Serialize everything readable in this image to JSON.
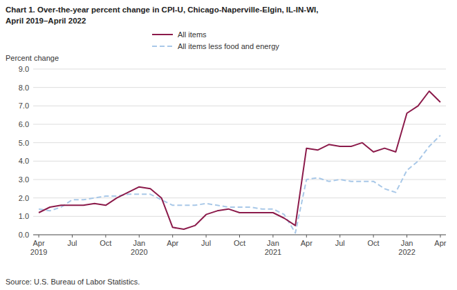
{
  "chart_data": {
    "type": "line",
    "title": "Chart 1. Over-the-year percent change in CPI-U, Chicago-Naperville-Elgin,  IL-IN-WI,",
    "subtitle": "April 2019–April  2022",
    "ylabel": "Percent change",
    "annotations": [
      "Source: U.S. Bureau of Labor Statistics."
    ],
    "categories": [
      "Apr\n2019",
      null,
      null,
      "Jul",
      null,
      null,
      "Oct",
      null,
      null,
      "Jan\n2020",
      null,
      null,
      "Apr",
      null,
      null,
      "Jul",
      null,
      null,
      "Oct",
      null,
      null,
      "Jan\n2021",
      null,
      null,
      "Apr",
      null,
      null,
      "Jul",
      null,
      null,
      "Oct",
      null,
      null,
      "Jan\n2022",
      null,
      null,
      "Apr"
    ],
    "series": [
      {
        "name": "All items",
        "color": "#8B1A4A",
        "line_style": "solid",
        "values": [
          1.2,
          1.5,
          1.6,
          1.6,
          1.6,
          1.7,
          1.6,
          2.0,
          2.3,
          2.6,
          2.5,
          2.0,
          0.4,
          0.3,
          0.5,
          1.1,
          1.3,
          1.4,
          1.2,
          1.2,
          1.2,
          1.2,
          0.9,
          0.5,
          4.7,
          4.6,
          4.9,
          4.8,
          4.8,
          5.0,
          4.5,
          4.7,
          4.5,
          6.6,
          7.0,
          7.8,
          7.2
        ]
      },
      {
        "name": "All items less food and energy",
        "color": "#A8C8E8",
        "line_style": "dashed",
        "values": [
          1.4,
          1.3,
          1.5,
          1.9,
          1.9,
          2.0,
          2.1,
          2.1,
          2.2,
          2.2,
          2.2,
          1.9,
          1.6,
          1.6,
          1.6,
          1.7,
          1.6,
          1.5,
          1.5,
          1.5,
          1.4,
          1.4,
          1.1,
          0.1,
          3.0,
          3.1,
          2.9,
          3.0,
          2.9,
          2.9,
          2.9,
          2.5,
          2.3,
          3.5,
          4.0,
          4.8,
          5.4
        ]
      }
    ],
    "ylim": [
      0.0,
      9.0
    ],
    "yticks": [
      {
        "value": 0.0,
        "label": "0.0"
      },
      {
        "value": 1.0,
        "label": "1.0"
      },
      {
        "value": 2.0,
        "label": "2.0"
      },
      {
        "value": 3.0,
        "label": "3.0"
      },
      {
        "value": 4.0,
        "label": "4.0"
      },
      {
        "value": 5.0,
        "label": "5.0"
      },
      {
        "value": 6.0,
        "label": "6.0"
      },
      {
        "value": 7.0,
        "label": "7.0"
      },
      {
        "value": 8.0,
        "label": "8.0"
      },
      {
        "value": 9.0,
        "label": "9.0"
      }
    ],
    "grid": true,
    "legend": "top"
  }
}
